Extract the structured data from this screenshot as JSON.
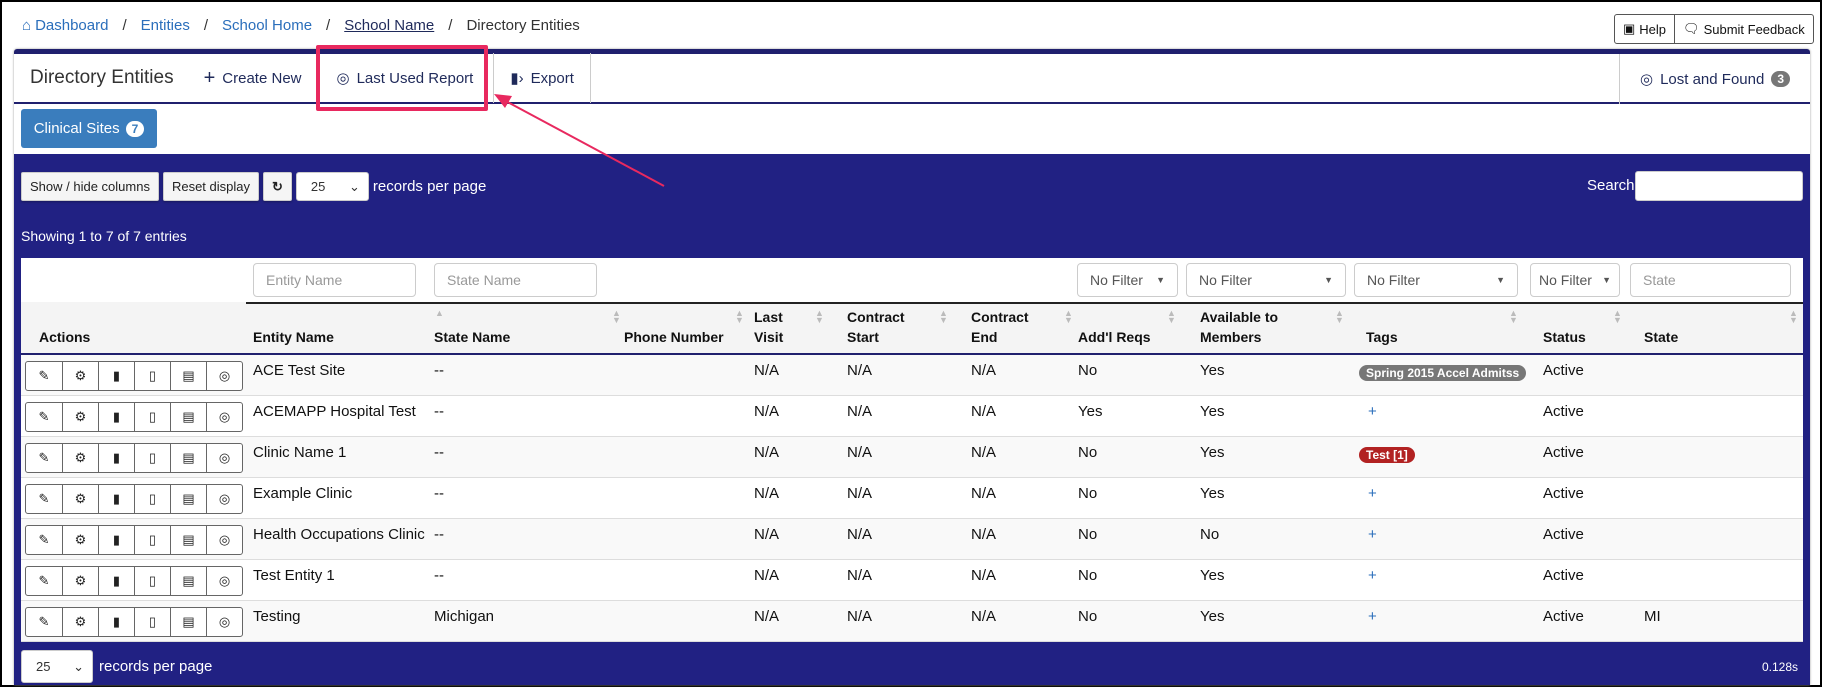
{
  "breadcrumb": [
    {
      "label": "Dashboard"
    },
    {
      "label": "Entities"
    },
    {
      "label": "School Home"
    },
    {
      "label": "School Name"
    },
    {
      "label": "Directory Entities"
    }
  ],
  "top_buttons": {
    "help": "Help",
    "feedback": "Submit Feedback"
  },
  "toolbar": {
    "title": "Directory Entities",
    "create": "Create New",
    "last_report": "Last Used Report",
    "export": "Export",
    "lost_found": "Lost and Found",
    "lost_found_count": "3"
  },
  "tabs": {
    "clinical": "Clinical Sites",
    "clinical_count": "7"
  },
  "controls": {
    "show_hide": "Show / hide columns",
    "reset": "Reset display",
    "page_size": "25",
    "records_label": "records per page",
    "search_label": "Search:",
    "search_value": ""
  },
  "info": "Showing 1 to 7 of 7 entries",
  "filters": {
    "entity": "Entity Name",
    "state_name": "State Name",
    "f1": "No Filter",
    "f2": "No Filter",
    "f3": "No Filter",
    "f4": "No Filter",
    "state": "State"
  },
  "columns": [
    "Actions",
    "Entity Name",
    "State Name",
    "Phone Number",
    "Last Visit",
    "Contract Start",
    "Contract End",
    "Add'l Reqs",
    "Available to Members",
    "Tags",
    "Status",
    "State"
  ],
  "rows": [
    {
      "name": "ACE Test Site",
      "state_name": "--",
      "phone": "",
      "last_visit": "N/A",
      "cstart": "N/A",
      "cend": "N/A",
      "addl": "No",
      "avail": "Yes",
      "tag": "Spring 2015 Accel Admitss",
      "tag_color": "#777777",
      "status": "Active",
      "state": ""
    },
    {
      "name": "ACEMAPP Hospital Test",
      "state_name": "--",
      "phone": "",
      "last_visit": "N/A",
      "cstart": "N/A",
      "cend": "N/A",
      "addl": "Yes",
      "avail": "Yes",
      "tag": "+",
      "status": "Active",
      "state": ""
    },
    {
      "name": "Clinic Name 1",
      "state_name": "--",
      "phone": "",
      "last_visit": "N/A",
      "cstart": "N/A",
      "cend": "N/A",
      "addl": "No",
      "avail": "Yes",
      "tag": "Test [1]",
      "tag_color": "#b22222",
      "status": "Active",
      "state": ""
    },
    {
      "name": "Example Clinic",
      "state_name": "--",
      "phone": "",
      "last_visit": "N/A",
      "cstart": "N/A",
      "cend": "N/A",
      "addl": "No",
      "avail": "Yes",
      "tag": "+",
      "status": "Active",
      "state": ""
    },
    {
      "name": "Health Occupations Clinic",
      "state_name": "--",
      "phone": "",
      "last_visit": "N/A",
      "cstart": "N/A",
      "cend": "N/A",
      "addl": "No",
      "avail": "No",
      "tag": "+",
      "status": "Active",
      "state": ""
    },
    {
      "name": "Test Entity 1",
      "state_name": "--",
      "phone": "",
      "last_visit": "N/A",
      "cstart": "N/A",
      "cend": "N/A",
      "addl": "No",
      "avail": "Yes",
      "tag": "+",
      "status": "Active",
      "state": ""
    },
    {
      "name": "Testing",
      "state_name": "Michigan",
      "phone": "",
      "last_visit": "N/A",
      "cstart": "N/A",
      "cend": "N/A",
      "addl": "No",
      "avail": "Yes",
      "tag": "+",
      "status": "Active",
      "state": "MI"
    }
  ],
  "footer": {
    "page_size": "25",
    "records_label": "records per page",
    "timing": "0.128s"
  },
  "colors": {
    "navy": "#212183",
    "highlight": "#e8295f",
    "primary": "#3a7dbd"
  }
}
